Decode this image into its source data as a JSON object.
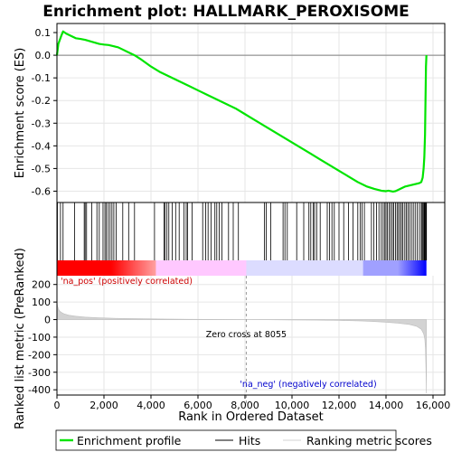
{
  "chart_data": {
    "type": "line",
    "title": "Enrichment plot: HALLMARK_PEROXISOME",
    "x_range": [
      0,
      16500
    ],
    "x_ticks": [
      0,
      2000,
      4000,
      6000,
      8000,
      10000,
      12000,
      14000,
      16000
    ],
    "x_tick_labels": [
      "0",
      "2,000",
      "4,000",
      "6,000",
      "8,000",
      "10,000",
      "12,000",
      "14,000",
      "16,000"
    ],
    "xlabel": "Rank in Ordered Dataset",
    "es_panel": {
      "ylabel": "Enrichment score (ES)",
      "ylim": [
        -0.65,
        0.14
      ],
      "y_ticks": [
        0.1,
        0.0,
        -0.1,
        -0.2,
        -0.3,
        -0.4,
        -0.5,
        -0.6
      ],
      "y_tick_labels": [
        "0.1",
        "0.0",
        "-0.1",
        "-0.2",
        "-0.3",
        "-0.4",
        "-0.5",
        "-0.6"
      ],
      "grid": true,
      "series": [
        {
          "name": "Enrichment profile",
          "color": "#00e400",
          "x": [
            0,
            60,
            130,
            200,
            260,
            400,
            600,
            800,
            1000,
            1100,
            1200,
            1400,
            1600,
            1800,
            2000,
            2200,
            2400,
            2600,
            2800,
            3000,
            3300,
            3600,
            4000,
            4400,
            4800,
            5200,
            5600,
            6000,
            6400,
            6800,
            7200,
            7600,
            8000,
            8400,
            8800,
            9200,
            9600,
            10000,
            10400,
            10800,
            11200,
            11600,
            12000,
            12400,
            12800,
            13200,
            13500,
            13800,
            14000,
            14100,
            14200,
            14300,
            14400,
            14500,
            14600,
            14700,
            14800,
            15000,
            15200,
            15400,
            15500,
            15560,
            15600,
            15630,
            15660,
            15680,
            15700,
            15720
          ],
          "y": [
            0.0,
            0.05,
            0.07,
            0.09,
            0.105,
            0.095,
            0.085,
            0.075,
            0.072,
            0.07,
            0.068,
            0.062,
            0.056,
            0.05,
            0.047,
            0.045,
            0.04,
            0.035,
            0.025,
            0.015,
            0.0,
            -0.02,
            -0.05,
            -0.075,
            -0.095,
            -0.115,
            -0.135,
            -0.155,
            -0.175,
            -0.195,
            -0.215,
            -0.235,
            -0.26,
            -0.285,
            -0.31,
            -0.335,
            -0.36,
            -0.385,
            -0.41,
            -0.435,
            -0.46,
            -0.485,
            -0.51,
            -0.535,
            -0.56,
            -0.58,
            -0.59,
            -0.598,
            -0.6,
            -0.598,
            -0.6,
            -0.602,
            -0.6,
            -0.595,
            -0.59,
            -0.585,
            -0.58,
            -0.575,
            -0.57,
            -0.565,
            -0.56,
            -0.54,
            -0.5,
            -0.45,
            -0.35,
            -0.2,
            -0.05,
            0.0
          ]
        }
      ]
    },
    "hits": [
      20,
      150,
      260,
      750,
      1160,
      1200,
      1260,
      1480,
      1700,
      1800,
      1960,
      2040,
      2100,
      2180,
      2260,
      2340,
      2420,
      2520,
      2800,
      3050,
      3300,
      4150,
      4550,
      4600,
      4680,
      4760,
      4900,
      5050,
      5200,
      5400,
      5500,
      5560,
      5750,
      6200,
      6330,
      6430,
      6560,
      6720,
      6800,
      6900,
      7020,
      7300,
      7500,
      7720,
      8830,
      8900,
      9100,
      9620,
      9700,
      9800,
      10200,
      10500,
      10720,
      10800,
      10900,
      10960,
      11050,
      11200,
      11500,
      11600,
      11700,
      11800,
      12000,
      12200,
      12400,
      12600,
      12800,
      12900,
      12980,
      13080,
      13380,
      13480,
      13600,
      13700,
      13800,
      13880,
      13950,
      14000,
      14060,
      14130,
      14200,
      14270,
      14330,
      14400,
      14470,
      14530,
      14600,
      14660,
      14720,
      14800,
      14860,
      14930,
      15000,
      15080,
      15160,
      15240,
      15330,
      15420,
      15500,
      15540,
      15580,
      15620,
      15650,
      15680,
      15700,
      15720
    ],
    "gradient_bar": {
      "colors": [
        "#ff0000",
        "#ffa0a0",
        "#ffc8ff",
        "#dcdcff",
        "#a0a0ff",
        "#0000ff"
      ],
      "pos_end_rank": 4200,
      "zero_rank": 8055
    },
    "metric_panel": {
      "ylabel": "Ranked list metric (PreRanked)",
      "ylim": [
        -430,
        250
      ],
      "y_ticks": [
        200,
        100,
        0,
        -100,
        -200,
        -300,
        -400
      ],
      "y_tick_labels": [
        "200",
        "100",
        "0",
        "-100",
        "-200",
        "-300",
        "-400"
      ],
      "grid": true,
      "series": [
        {
          "name": "Ranking metric scores",
          "color": "#d3d3d3",
          "x": [
            0,
            20,
            60,
            120,
            200,
            300,
            500,
            800,
            1200,
            1800,
            2500,
            3500,
            4500,
            5500,
            6500,
            7500,
            8055,
            9000,
            10000,
            11000,
            12000,
            13000,
            13500,
            14000,
            14500,
            15000,
            15300,
            15500,
            15600,
            15650,
            15680,
            15700,
            15720
          ],
          "y": [
            110,
            80,
            60,
            48,
            40,
            33,
            25,
            19,
            14,
            10,
            7,
            5,
            3,
            2,
            1,
            0.5,
            0,
            -1,
            -2,
            -3,
            -5,
            -8,
            -11,
            -15,
            -20,
            -28,
            -38,
            -55,
            -80,
            -110,
            -170,
            -280,
            -420
          ]
        }
      ],
      "annotations": [
        {
          "text": "'na_pos' (positively correlated)",
          "color": "#cc0000"
        },
        {
          "text": "Zero cross at 8055",
          "color": "#000000"
        },
        {
          "text": "'na_neg' (negatively correlated)",
          "color": "#0000cc"
        }
      ]
    },
    "legend": {
      "placement": "bottom",
      "entries": [
        {
          "label": "Enrichment profile",
          "color": "#00e400"
        },
        {
          "label": "Hits",
          "color": "#000000"
        },
        {
          "label": "Ranking metric scores",
          "color": "#d3d3d3"
        }
      ]
    }
  }
}
